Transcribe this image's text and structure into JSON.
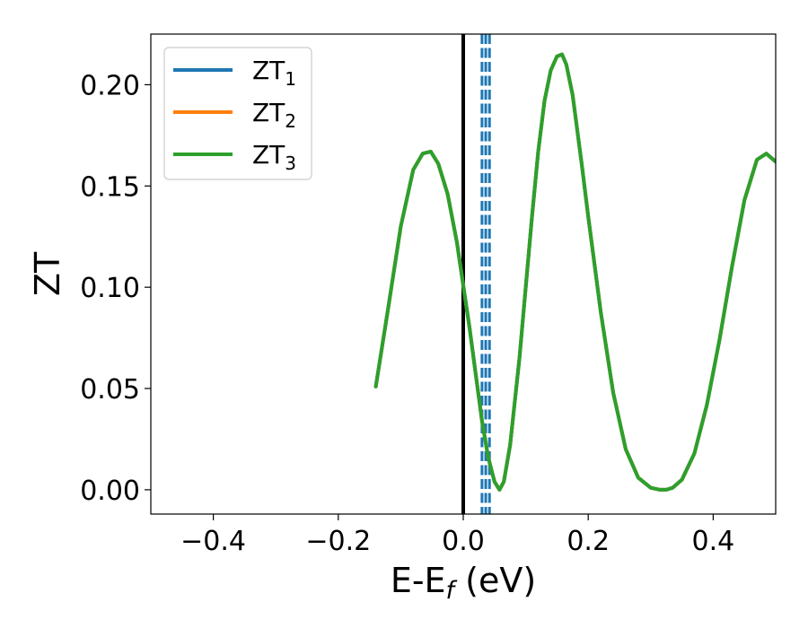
{
  "chart_data": {
    "type": "line",
    "xlabel": "E-E$_f$ (eV)",
    "ylabel": "ZT",
    "xlim": [
      -0.5,
      0.5
    ],
    "ylim": [
      -0.012,
      0.225
    ],
    "x_ticks": [
      -0.4,
      -0.2,
      0.0,
      0.2,
      0.4
    ],
    "x_tick_labels": [
      "−0.4",
      "−0.2",
      "0.0",
      "0.2",
      "0.4"
    ],
    "y_ticks": [
      0.0,
      0.05,
      0.1,
      0.15,
      0.2
    ],
    "y_tick_labels": [
      "0.00",
      "0.05",
      "0.10",
      "0.15",
      "0.20"
    ],
    "legend_position": "upper-left",
    "grid": false,
    "series": [
      {
        "name": "ZT1",
        "color": "#1f77b4",
        "x": [
          -0.14,
          -0.12,
          -0.1,
          -0.08,
          -0.065,
          -0.052,
          -0.04,
          -0.025,
          -0.01,
          0.0,
          0.01,
          0.02,
          0.03,
          0.04,
          0.05,
          0.058,
          0.065,
          0.075,
          0.09,
          0.1,
          0.11,
          0.12,
          0.13,
          0.14,
          0.15,
          0.158,
          0.165,
          0.175,
          0.19,
          0.2,
          0.22,
          0.24,
          0.26,
          0.28,
          0.3,
          0.315,
          0.325,
          0.335,
          0.35,
          0.37,
          0.39,
          0.41,
          0.43,
          0.45,
          0.47,
          0.485,
          0.5
        ],
        "y": [
          0.051,
          0.09,
          0.13,
          0.158,
          0.166,
          0.167,
          0.161,
          0.146,
          0.122,
          0.101,
          0.08,
          0.057,
          0.034,
          0.016,
          0.004,
          0.0,
          0.004,
          0.022,
          0.065,
          0.1,
          0.135,
          0.167,
          0.192,
          0.207,
          0.214,
          0.215,
          0.21,
          0.195,
          0.16,
          0.135,
          0.088,
          0.048,
          0.02,
          0.006,
          0.001,
          0.0,
          0.0,
          0.001,
          0.005,
          0.018,
          0.042,
          0.074,
          0.11,
          0.143,
          0.163,
          0.166,
          0.162
        ]
      },
      {
        "name": "ZT2",
        "color": "#ff7f0e",
        "x": [
          -0.14,
          -0.12,
          -0.1,
          -0.08,
          -0.065,
          -0.052,
          -0.04,
          -0.025,
          -0.01,
          0.0,
          0.01,
          0.02,
          0.03,
          0.04,
          0.05,
          0.058,
          0.065,
          0.075,
          0.09,
          0.1,
          0.11,
          0.12,
          0.13,
          0.14,
          0.15,
          0.158,
          0.165,
          0.175,
          0.19,
          0.2,
          0.22,
          0.24,
          0.26,
          0.28,
          0.3,
          0.315,
          0.325,
          0.335,
          0.35,
          0.37,
          0.39,
          0.41,
          0.43,
          0.45,
          0.47,
          0.485,
          0.5
        ],
        "y": [
          0.051,
          0.09,
          0.13,
          0.158,
          0.166,
          0.167,
          0.161,
          0.146,
          0.122,
          0.101,
          0.08,
          0.057,
          0.034,
          0.016,
          0.004,
          0.0,
          0.004,
          0.022,
          0.065,
          0.1,
          0.135,
          0.167,
          0.192,
          0.207,
          0.214,
          0.215,
          0.21,
          0.195,
          0.16,
          0.135,
          0.088,
          0.048,
          0.02,
          0.006,
          0.001,
          0.0,
          0.0,
          0.001,
          0.005,
          0.018,
          0.042,
          0.074,
          0.11,
          0.143,
          0.163,
          0.166,
          0.162
        ]
      },
      {
        "name": "ZT3",
        "color": "#2ca02c",
        "x": [
          -0.14,
          -0.12,
          -0.1,
          -0.08,
          -0.065,
          -0.052,
          -0.04,
          -0.025,
          -0.01,
          0.0,
          0.01,
          0.02,
          0.03,
          0.04,
          0.05,
          0.058,
          0.065,
          0.075,
          0.09,
          0.1,
          0.11,
          0.12,
          0.13,
          0.14,
          0.15,
          0.158,
          0.165,
          0.175,
          0.19,
          0.2,
          0.22,
          0.24,
          0.26,
          0.28,
          0.3,
          0.315,
          0.325,
          0.335,
          0.35,
          0.37,
          0.39,
          0.41,
          0.43,
          0.45,
          0.47,
          0.485,
          0.5
        ],
        "y": [
          0.051,
          0.09,
          0.13,
          0.158,
          0.166,
          0.167,
          0.161,
          0.146,
          0.122,
          0.101,
          0.08,
          0.057,
          0.034,
          0.016,
          0.004,
          0.0,
          0.004,
          0.022,
          0.065,
          0.1,
          0.135,
          0.167,
          0.192,
          0.207,
          0.214,
          0.215,
          0.21,
          0.195,
          0.16,
          0.135,
          0.088,
          0.048,
          0.02,
          0.006,
          0.001,
          0.0,
          0.0,
          0.001,
          0.005,
          0.018,
          0.042,
          0.074,
          0.11,
          0.143,
          0.163,
          0.166,
          0.162
        ]
      }
    ],
    "reference_lines": [
      {
        "x": 0.0,
        "style": "solid",
        "color": "#000000"
      },
      {
        "x": 0.03,
        "style": "dashed",
        "color": "#1f77b4"
      },
      {
        "x": 0.036,
        "style": "dashed",
        "color": "#1f77b4"
      },
      {
        "x": 0.042,
        "style": "dashed",
        "color": "#1f77b4"
      }
    ]
  }
}
